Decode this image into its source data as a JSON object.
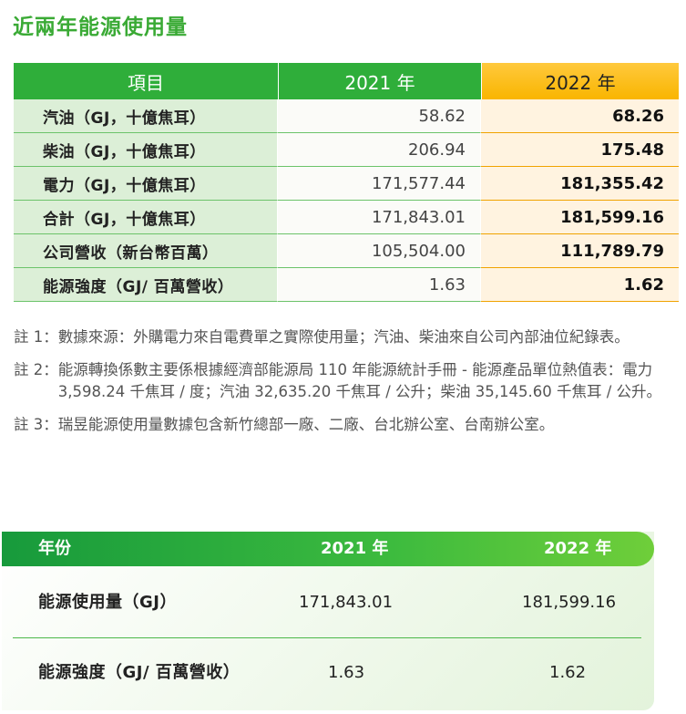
{
  "title": "近兩年能源使用量",
  "table1": {
    "headers": [
      "項目",
      "2021 年",
      "2022 年"
    ],
    "rows": [
      {
        "label": "汽油（GJ，十億焦耳）",
        "v2021": "58.62",
        "v2022": "68.26"
      },
      {
        "label": "柴油（GJ，十億焦耳）",
        "v2021": "206.94",
        "v2022": "175.48"
      },
      {
        "label": "電力（GJ，十億焦耳）",
        "v2021": "171,577.44",
        "v2022": "181,355.42"
      },
      {
        "label": "合計（GJ，十億焦耳）",
        "v2021": "171,843.01",
        "v2022": "181,599.16"
      },
      {
        "label": "公司營收（新台幣百萬）",
        "v2021": "105,504.00",
        "v2022": "111,789.79"
      },
      {
        "label": "能源強度（GJ/ 百萬營收）",
        "v2021": "1.63",
        "v2022": "1.62"
      }
    ]
  },
  "notes": [
    {
      "label": "註 1：",
      "text": "數據來源：外購電力來自電費單之實際使用量；汽油、柴油來自公司內部油位紀錄表。"
    },
    {
      "label": "註 2：",
      "text": "能源轉換係數主要係根據經濟部能源局 110 年能源統計手冊 - 能源產品單位熱值表：電力 3,598.24 千焦耳 / 度；汽油 32,635.20 千焦耳 / 公升；柴油 35,145.60 千焦耳 / 公升。"
    },
    {
      "label": "註 3：",
      "text": "瑞昱能源使用量數據包含新竹總部一廠、二廠、台北辦公室、台南辦公室。"
    }
  ],
  "table2": {
    "headers": [
      "年份",
      "2021 年",
      "2022 年"
    ],
    "rows": [
      {
        "label": "能源使用量（GJ）",
        "v2021": "171,843.01",
        "v2022": "181,599.16"
      },
      {
        "label": "能源強度（GJ/ 百萬營收）",
        "v2021": "1.63",
        "v2022": "1.62"
      }
    ]
  },
  "colors": {
    "accent_green": "#2fae3a",
    "accent_orange": "#f9b500"
  }
}
